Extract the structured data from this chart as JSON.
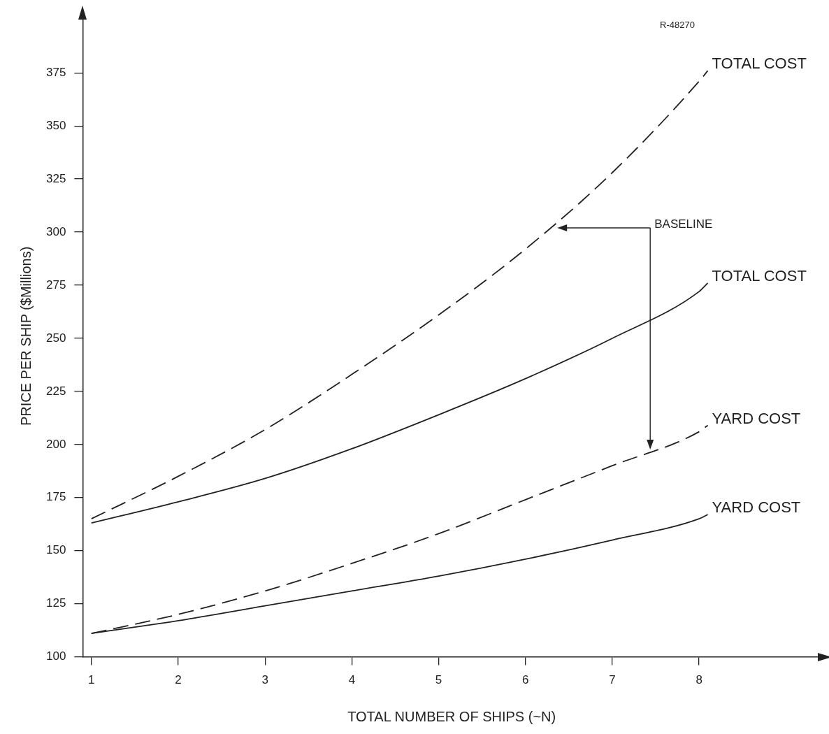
{
  "chart_data": {
    "type": "line",
    "xlabel": "TOTAL NUMBER OF SHIPS (~N)",
    "ylabel": "PRICE PER SHIP ($Millions)",
    "xlim": [
      0.9,
      9.4
    ],
    "xticks": [
      1,
      2,
      3,
      4,
      5,
      6,
      7,
      8
    ],
    "ylim": [
      100,
      402
    ],
    "yticks": [
      100,
      125,
      150,
      175,
      200,
      225,
      250,
      275,
      300,
      325,
      350,
      375
    ],
    "grid": false,
    "legend": false,
    "marker": "none",
    "series": [
      {
        "name": "TOTAL COST",
        "color": "#222222",
        "line_style": "dashed",
        "x": [
          1,
          2,
          3,
          4,
          5,
          6,
          7,
          8,
          8.1
        ],
        "values": [
          165,
          185,
          207,
          233,
          261,
          292,
          328,
          371,
          376
        ]
      },
      {
        "name": "TOTAL COST",
        "color": "#222222",
        "line_style": "solid",
        "x": [
          1,
          2,
          3,
          4,
          5,
          6,
          7,
          8,
          8.1
        ],
        "values": [
          163,
          173,
          184,
          198,
          214,
          231,
          250,
          272,
          276
        ]
      },
      {
        "name": "YARD COST",
        "color": "#222222",
        "line_style": "dashed",
        "x": [
          1,
          2,
          3,
          4,
          5,
          6,
          7,
          8,
          8.1
        ],
        "values": [
          111,
          120,
          131,
          144,
          158,
          174,
          190,
          206,
          209
        ]
      },
      {
        "name": "YARD COST",
        "color": "#222222",
        "line_style": "solid",
        "x": [
          1,
          2,
          3,
          4,
          5,
          6,
          7,
          8,
          8.1
        ],
        "values": [
          111,
          117,
          124,
          131,
          138,
          146,
          155,
          165,
          167
        ]
      }
    ],
    "annotations": [
      "R-48270",
      {
        "text": "BASELINE",
        "x": 6.35,
        "y": 302
      }
    ]
  }
}
